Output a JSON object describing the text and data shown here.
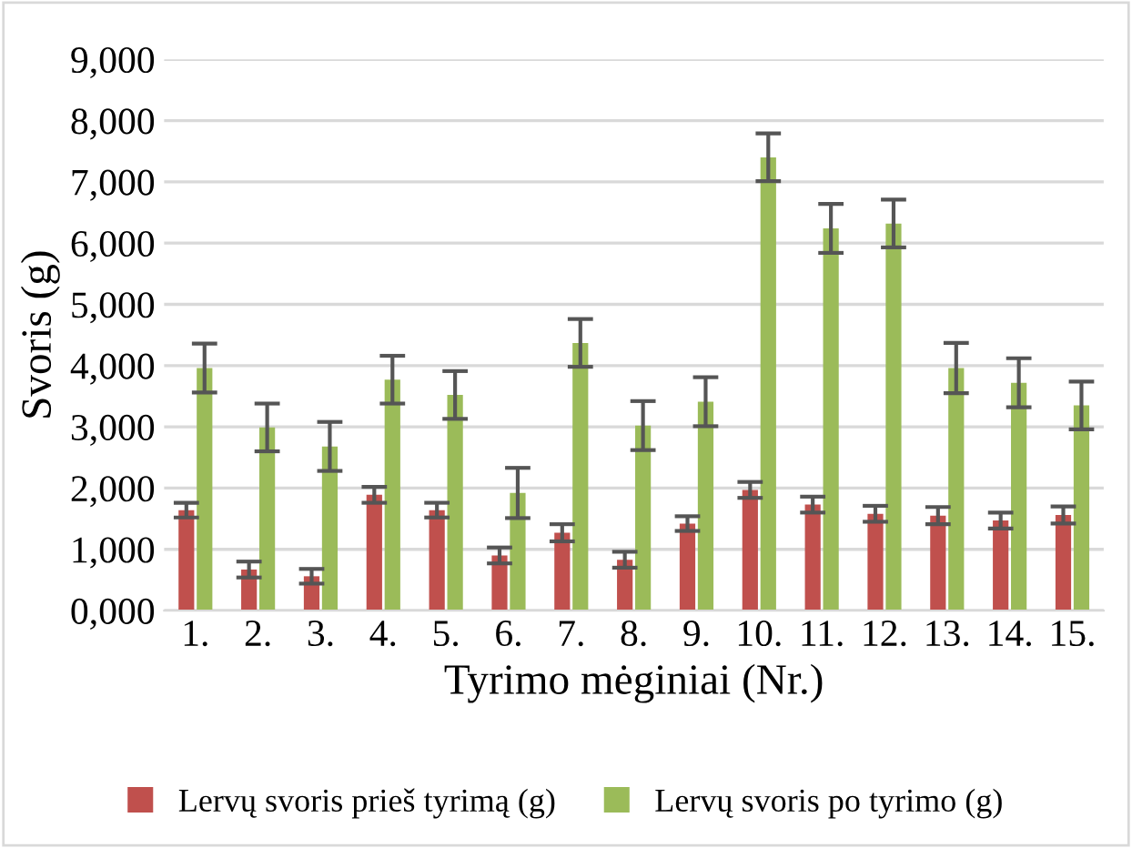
{
  "chart_data": {
    "type": "bar",
    "xlabel": "Tyrimo mėginiai (Nr.)",
    "ylabel": "Svoris (g)",
    "categories": [
      "1.",
      "2.",
      "3.",
      "4.",
      "5.",
      "6.",
      "7.",
      "8.",
      "9.",
      "10.",
      "11.",
      "12.",
      "13.",
      "14.",
      "15."
    ],
    "series": [
      {
        "name": "Lervų svoris prieš tyrimą (g)",
        "color": "#c0504d",
        "values": [
          1640,
          670,
          560,
          1890,
          1640,
          900,
          1270,
          830,
          1420,
          1970,
          1730,
          1580,
          1550,
          1470,
          1560
        ],
        "errors": [
          120,
          130,
          120,
          130,
          120,
          130,
          140,
          130,
          120,
          130,
          130,
          130,
          140,
          130,
          140
        ]
      },
      {
        "name": "Lervų svoris po tyrimo (g)",
        "color": "#9bbb59",
        "values": [
          3960,
          2990,
          2680,
          3770,
          3520,
          1920,
          4370,
          3020,
          3410,
          7400,
          6240,
          6320,
          3960,
          3720,
          3350
        ],
        "errors": [
          400,
          390,
          400,
          390,
          390,
          410,
          390,
          400,
          400,
          390,
          400,
          390,
          410,
          400,
          390
        ]
      }
    ],
    "ylim": [
      0,
      9000
    ],
    "yticks": [
      {
        "value": 0,
        "label": "0,000"
      },
      {
        "value": 1000,
        "label": "1,000"
      },
      {
        "value": 2000,
        "label": "2,000"
      },
      {
        "value": 3000,
        "label": "3,000"
      },
      {
        "value": 4000,
        "label": "4,000"
      },
      {
        "value": 5000,
        "label": "5,000"
      },
      {
        "value": 6000,
        "label": "6,000"
      },
      {
        "value": 7000,
        "label": "7,000"
      },
      {
        "value": 8000,
        "label": "8,000"
      },
      {
        "value": 9000,
        "label": "9,000"
      }
    ],
    "grid": "y",
    "legend": "bottom"
  }
}
